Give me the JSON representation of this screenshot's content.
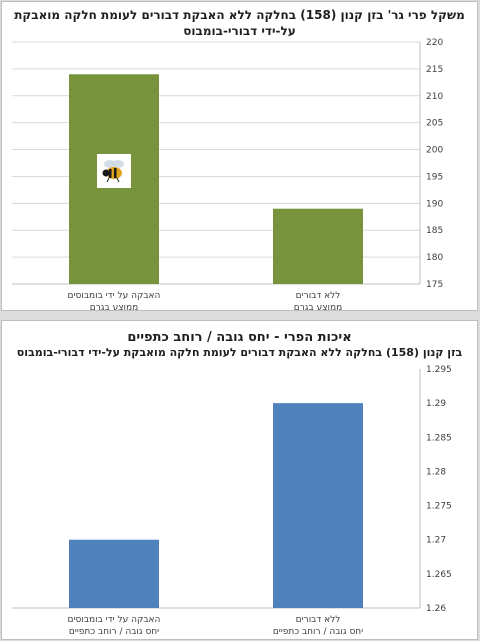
{
  "chart_data": [
    {
      "type": "bar",
      "title_lines": [
        "משקל פרי גר' בזן קנון (158) בחלקה ללא האבקת דבורים לעומת חלקה מואבקת",
        "על-ידי דבורי-בומבוס"
      ],
      "categories": [
        [
          "האבקה על ידי בומבוסים",
          "ממוצע בגרם"
        ],
        [
          "ללא דבורים",
          "ממוצע בגרם"
        ]
      ],
      "values": [
        214,
        189
      ],
      "ylim": [
        175,
        220
      ],
      "yticks": [
        "175",
        "180",
        "185",
        "190",
        "195",
        "200",
        "205",
        "210",
        "215",
        "220"
      ],
      "y_axis_side": "right",
      "grid": true,
      "bar_color": "#77933c",
      "bee_icon": "bumblebee-icon"
    },
    {
      "type": "bar",
      "title_lines": [
        "איכות הפרי - יחס גובה / רוחב כתפיים",
        "בזן קנון (158) בחלקה ללא האבקת דבורים לעומת חלקה מואבקת על-ידי דבורי-בומבוס"
      ],
      "categories": [
        [
          "האבקה על ידי בומבוסים",
          "יחס גובה / רוחב כתפיים"
        ],
        [
          "ללא דבורים",
          "יחס גובה / רוחב כתפיים"
        ]
      ],
      "values": [
        1.27,
        1.29
      ],
      "ylim": [
        1.26,
        1.295
      ],
      "yticks": [
        "1.26",
        "1.265",
        "1.27",
        "1.275",
        "1.28",
        "1.285",
        "1.29",
        "1.295"
      ],
      "y_axis_side": "right",
      "grid": false,
      "bar_color": "#4f81bd"
    }
  ]
}
